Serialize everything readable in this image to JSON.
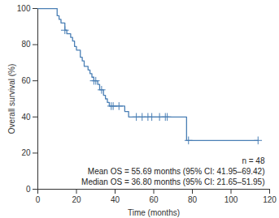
{
  "chart_data": {
    "type": "line",
    "x_label": "Time (months)",
    "y_label": "Overall survival (%)",
    "x": [
      0,
      10,
      11,
      12,
      14,
      15,
      17,
      18,
      19,
      20,
      22,
      23,
      24,
      26,
      27,
      28,
      29,
      31,
      32,
      34,
      35,
      36,
      37,
      45,
      47,
      77,
      114
    ],
    "values": [
      100,
      96,
      94,
      92,
      88,
      86,
      84,
      82,
      79,
      77,
      73,
      71,
      68,
      66,
      64,
      62,
      60,
      58,
      55,
      52,
      50,
      48,
      46,
      43,
      40,
      27,
      27
    ],
    "color": "#4a7fb5",
    "line_style": "step",
    "censored": {
      "x": [
        14,
        29,
        30,
        33,
        38,
        39,
        42,
        51,
        54,
        57,
        59,
        63,
        66,
        67,
        78,
        114
      ],
      "values": [
        88,
        60,
        60,
        55,
        46,
        46,
        46,
        40,
        40,
        40,
        40,
        40,
        40,
        40,
        27,
        27
      ],
      "marker": "plus"
    },
    "annotations": [
      "n = 48",
      "Mean OS = 55.69 months (95% CI: 41.95–69.42)",
      "Median OS = 36.80 months (95% CI: 21.65–51.95)"
    ],
    "xlim": [
      0,
      120
    ],
    "xticks": [
      0,
      20,
      40,
      60,
      80,
      100,
      120
    ],
    "ylim": [
      0,
      100
    ],
    "yticks": [
      0,
      20,
      40,
      60,
      80,
      100
    ],
    "grid": false
  }
}
